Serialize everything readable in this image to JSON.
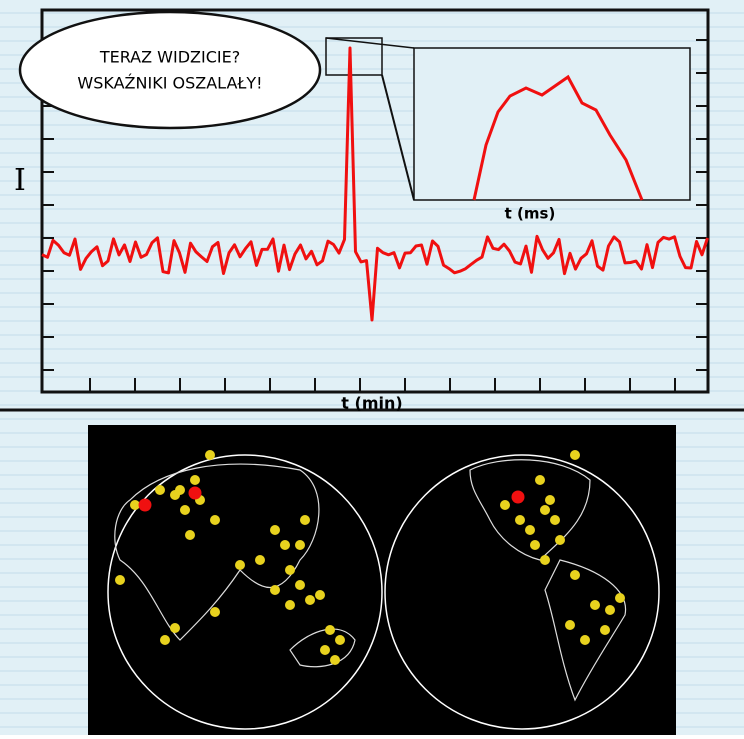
{
  "bubble": {
    "lines": [
      "TERAZ WIDZICIE?",
      "WSKAŹNIKI OSZALAŁY!"
    ]
  },
  "inset": {
    "x_label": "t (ms)"
  },
  "plot": {
    "x_label": "t (min)"
  }
}
